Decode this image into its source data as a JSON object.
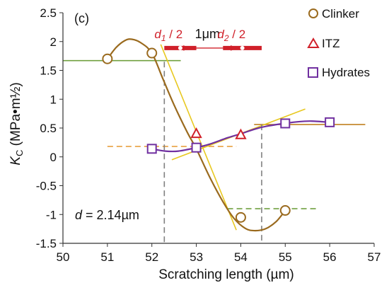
{
  "chart_data": {
    "type": "scatter",
    "panel_label": "(c)",
    "xlabel": "Scratching length (µm)",
    "ylabel_main": "K",
    "ylabel_sub": "C",
    "ylabel_unit": " (MPa•m½)",
    "xlim": [
      50,
      57
    ],
    "ylim": [
      -1.5,
      2.5
    ],
    "xticks": [
      50,
      51,
      52,
      53,
      54,
      55,
      56,
      57
    ],
    "yticks": [
      -1.5,
      -1,
      -0.5,
      0,
      0.5,
      1,
      1.5,
      2,
      2.5
    ],
    "grid": false,
    "legend_position": "top-right",
    "series": [
      {
        "name": "Clinker",
        "marker": "circle",
        "color": "#9a6a1e",
        "points": [
          [
            51,
            1.7
          ],
          [
            52,
            1.8
          ],
          [
            54,
            -1.05
          ],
          [
            55,
            -0.93
          ]
        ]
      },
      {
        "name": "ITZ",
        "marker": "triangle",
        "color": "#d0202a",
        "points": [
          [
            53,
            0.4
          ],
          [
            54,
            0.38
          ]
        ]
      },
      {
        "name": "Hydrates",
        "marker": "square",
        "color": "#7030a0",
        "points": [
          [
            52,
            0.14
          ],
          [
            53,
            0.16
          ],
          [
            55,
            0.58
          ],
          [
            56,
            0.6
          ]
        ]
      }
    ],
    "fit_curves": [
      {
        "color": "#9a6a1e",
        "points": [
          [
            51,
            1.7
          ],
          [
            51.2,
            1.9
          ],
          [
            51.4,
            2.02
          ],
          [
            51.55,
            2.04
          ],
          [
            51.75,
            1.98
          ],
          [
            52,
            1.8
          ],
          [
            52.25,
            1.35
          ],
          [
            52.5,
            0.9
          ],
          [
            52.8,
            0.42
          ],
          [
            53,
            0.14
          ],
          [
            53.3,
            -0.35
          ],
          [
            53.6,
            -0.78
          ],
          [
            53.85,
            -1.07
          ],
          [
            54.1,
            -1.24
          ],
          [
            54.3,
            -1.28
          ],
          [
            54.55,
            -1.25
          ],
          [
            54.8,
            -1.12
          ],
          [
            55,
            -0.93
          ]
        ]
      },
      {
        "color": "#7030a0",
        "points": [
          [
            52,
            0.14
          ],
          [
            52.3,
            0.1
          ],
          [
            52.6,
            0.1
          ],
          [
            53,
            0.16
          ],
          [
            53.3,
            0.22
          ],
          [
            53.7,
            0.33
          ],
          [
            54,
            0.4
          ],
          [
            54.4,
            0.5
          ],
          [
            54.8,
            0.56
          ],
          [
            55.3,
            0.61
          ],
          [
            55.6,
            0.62
          ],
          [
            56,
            0.6
          ]
        ]
      }
    ],
    "reference_lines": [
      {
        "color": "#70a040",
        "style": "solid",
        "points": [
          [
            50,
            1.67
          ],
          [
            52.65,
            1.67
          ]
        ]
      },
      {
        "color": "#c08020",
        "style": "solid",
        "points": [
          [
            54.3,
            0.56
          ],
          [
            56.8,
            0.56
          ]
        ]
      },
      {
        "color": "#e8a040",
        "style": "dashed",
        "points": [
          [
            51,
            0.18
          ],
          [
            53.9,
            0.18
          ]
        ]
      },
      {
        "color": "#70a040",
        "style": "dashed",
        "points": [
          [
            53.7,
            -0.9
          ],
          [
            55.7,
            -0.9
          ]
        ]
      },
      {
        "color": "#e8c820",
        "style": "solid",
        "points": [
          [
            52.2,
            1.95
          ],
          [
            53.9,
            -1.27
          ]
        ]
      },
      {
        "color": "#e8c820",
        "style": "solid",
        "points": [
          [
            52.45,
            -0.05
          ],
          [
            55.45,
            0.83
          ]
        ]
      },
      {
        "color": "#808080",
        "style": "dashed",
        "points": [
          [
            52.28,
            1.65
          ],
          [
            52.28,
            -1.5
          ]
        ]
      },
      {
        "color": "#808080",
        "style": "dashed",
        "points": [
          [
            54.47,
            0.56
          ],
          [
            54.47,
            -1.5
          ]
        ]
      }
    ],
    "annotations": [
      {
        "kind": "formula",
        "prefix": "d",
        "value": " = 2.14µm",
        "x": 50.25,
        "y": -1.2
      }
    ],
    "dimension_labels": {
      "d1_main": "d",
      "d1_sub": "1",
      "d1_tail": " / 2",
      "gap": "1μm",
      "d2_main": "d",
      "d2_sub": "2",
      "d2_tail": " / 2",
      "d1_x": [
        52.28,
        53.0
      ],
      "gap_x": [
        52.6,
        53.9
      ],
      "d2_x": [
        53.6,
        54.47
      ],
      "y": 1.9
    }
  }
}
